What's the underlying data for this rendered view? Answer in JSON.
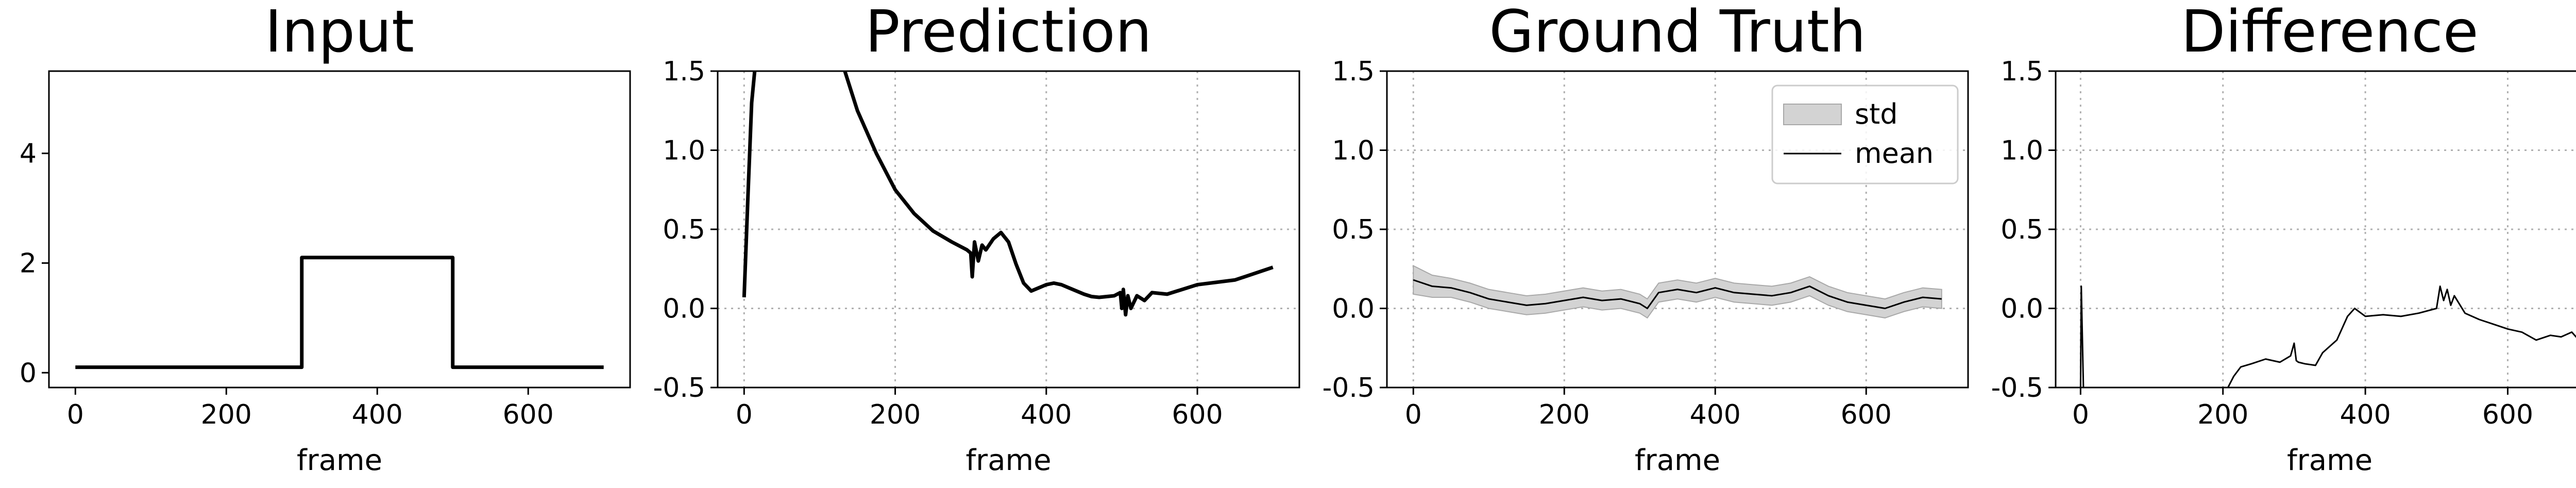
{
  "chart_data": [
    {
      "type": "line",
      "title": "Input",
      "xlabel": "frame",
      "ylabel": "",
      "xlim": [
        -35,
        735
      ],
      "ylim": [
        -0.27,
        5.5
      ],
      "xticks": [
        0,
        200,
        400,
        600
      ],
      "yticks": [
        0,
        2,
        4
      ],
      "grid": false,
      "series": [
        {
          "x": [
            0,
            300,
            300,
            500,
            500,
            700
          ],
          "y": [
            0.1,
            0.1,
            2.1,
            2.1,
            0.1,
            0.1
          ],
          "color": "#000000"
        }
      ]
    },
    {
      "type": "line",
      "title": "Prediction",
      "xlabel": "frame",
      "ylabel": "",
      "xlim": [
        -35,
        735
      ],
      "ylim": [
        -0.5,
        1.5
      ],
      "xticks": [
        0,
        200,
        400,
        600
      ],
      "yticks": [
        -0.5,
        0.0,
        0.5,
        1.0,
        1.5
      ],
      "grid": true,
      "series": [
        {
          "x": [
            0,
            5,
            10,
            15,
            130,
            150,
            175,
            200,
            225,
            250,
            275,
            295,
            300,
            302,
            305,
            310,
            315,
            320,
            330,
            340,
            350,
            360,
            370,
            380,
            390,
            400,
            410,
            420,
            430,
            440,
            450,
            460,
            470,
            480,
            490,
            498,
            500,
            502,
            505,
            508,
            512,
            520,
            530,
            540,
            560,
            600,
            650,
            700
          ],
          "y": [
            0.07,
            0.7,
            1.3,
            1.55,
            1.55,
            1.25,
            0.98,
            0.75,
            0.6,
            0.49,
            0.42,
            0.37,
            0.35,
            0.2,
            0.42,
            0.3,
            0.4,
            0.37,
            0.44,
            0.48,
            0.42,
            0.28,
            0.16,
            0.11,
            0.13,
            0.15,
            0.16,
            0.15,
            0.13,
            0.11,
            0.09,
            0.075,
            0.07,
            0.075,
            0.08,
            0.1,
            0.0,
            0.12,
            -0.04,
            0.08,
            0.0,
            0.08,
            0.05,
            0.1,
            0.09,
            0.15,
            0.18,
            0.26
          ],
          "color": "#000000"
        }
      ]
    },
    {
      "type": "area",
      "title": "Ground Truth",
      "xlabel": "frame",
      "ylabel": "",
      "xlim": [
        -35,
        735
      ],
      "ylim": [
        -0.5,
        1.5
      ],
      "xticks": [
        0,
        200,
        400,
        600
      ],
      "yticks": [
        -0.5,
        0.0,
        0.5,
        1.0,
        1.5
      ],
      "grid": true,
      "legend_position": "upper right",
      "legend": [
        "std",
        "mean"
      ],
      "series": [
        {
          "name": "mean",
          "x": [
            0,
            25,
            50,
            75,
            100,
            125,
            150,
            175,
            200,
            225,
            250,
            275,
            300,
            310,
            325,
            350,
            375,
            400,
            425,
            450,
            475,
            500,
            525,
            550,
            575,
            600,
            625,
            650,
            675,
            700
          ],
          "y": [
            0.18,
            0.14,
            0.13,
            0.1,
            0.06,
            0.04,
            0.02,
            0.03,
            0.05,
            0.07,
            0.05,
            0.06,
            0.03,
            0.0,
            0.1,
            0.12,
            0.1,
            0.13,
            0.1,
            0.09,
            0.08,
            0.1,
            0.14,
            0.08,
            0.04,
            0.02,
            0.0,
            0.04,
            0.07,
            0.06
          ],
          "color": "#000000"
        },
        {
          "name": "std",
          "std": [
            0.09,
            0.07,
            0.06,
            0.06,
            0.06,
            0.06,
            0.06,
            0.06,
            0.06,
            0.06,
            0.06,
            0.06,
            0.06,
            0.06,
            0.06,
            0.06,
            0.06,
            0.06,
            0.06,
            0.06,
            0.06,
            0.06,
            0.06,
            0.06,
            0.06,
            0.06,
            0.06,
            0.06,
            0.06,
            0.06
          ],
          "color": "#d3d3d3"
        }
      ]
    },
    {
      "type": "line",
      "title": "Difference",
      "xlabel": "frame",
      "ylabel": "",
      "xlim": [
        -35,
        735
      ],
      "ylim": [
        -0.5,
        1.5
      ],
      "xticks": [
        0,
        200,
        400,
        600
      ],
      "yticks": [
        -0.5,
        0.0,
        0.5,
        1.0,
        1.5
      ],
      "grid": true,
      "series": [
        {
          "x": [
            0,
            1,
            4
          ],
          "y": [
            -0.5,
            0.14,
            -0.5
          ],
          "color": "#000000"
        },
        {
          "x": [
            207,
            215,
            225,
            240,
            260,
            280,
            295,
            300,
            303,
            306,
            315,
            330,
            340,
            350,
            360,
            375,
            385,
            400,
            425,
            450,
            475,
            500,
            505,
            510,
            515,
            520,
            525,
            540,
            560,
            580,
            600,
            620,
            640,
            660,
            675,
            690,
            700
          ],
          "y": [
            -0.5,
            -0.43,
            -0.37,
            -0.35,
            -0.32,
            -0.34,
            -0.3,
            -0.22,
            -0.33,
            -0.34,
            -0.35,
            -0.36,
            -0.28,
            -0.24,
            -0.2,
            -0.05,
            0.0,
            -0.05,
            -0.04,
            -0.05,
            -0.03,
            0.0,
            0.14,
            0.05,
            0.12,
            0.02,
            0.08,
            -0.03,
            -0.07,
            -0.1,
            -0.13,
            -0.15,
            -0.2,
            -0.17,
            -0.18,
            -0.15,
            -0.2
          ],
          "color": "#000000"
        }
      ]
    }
  ]
}
